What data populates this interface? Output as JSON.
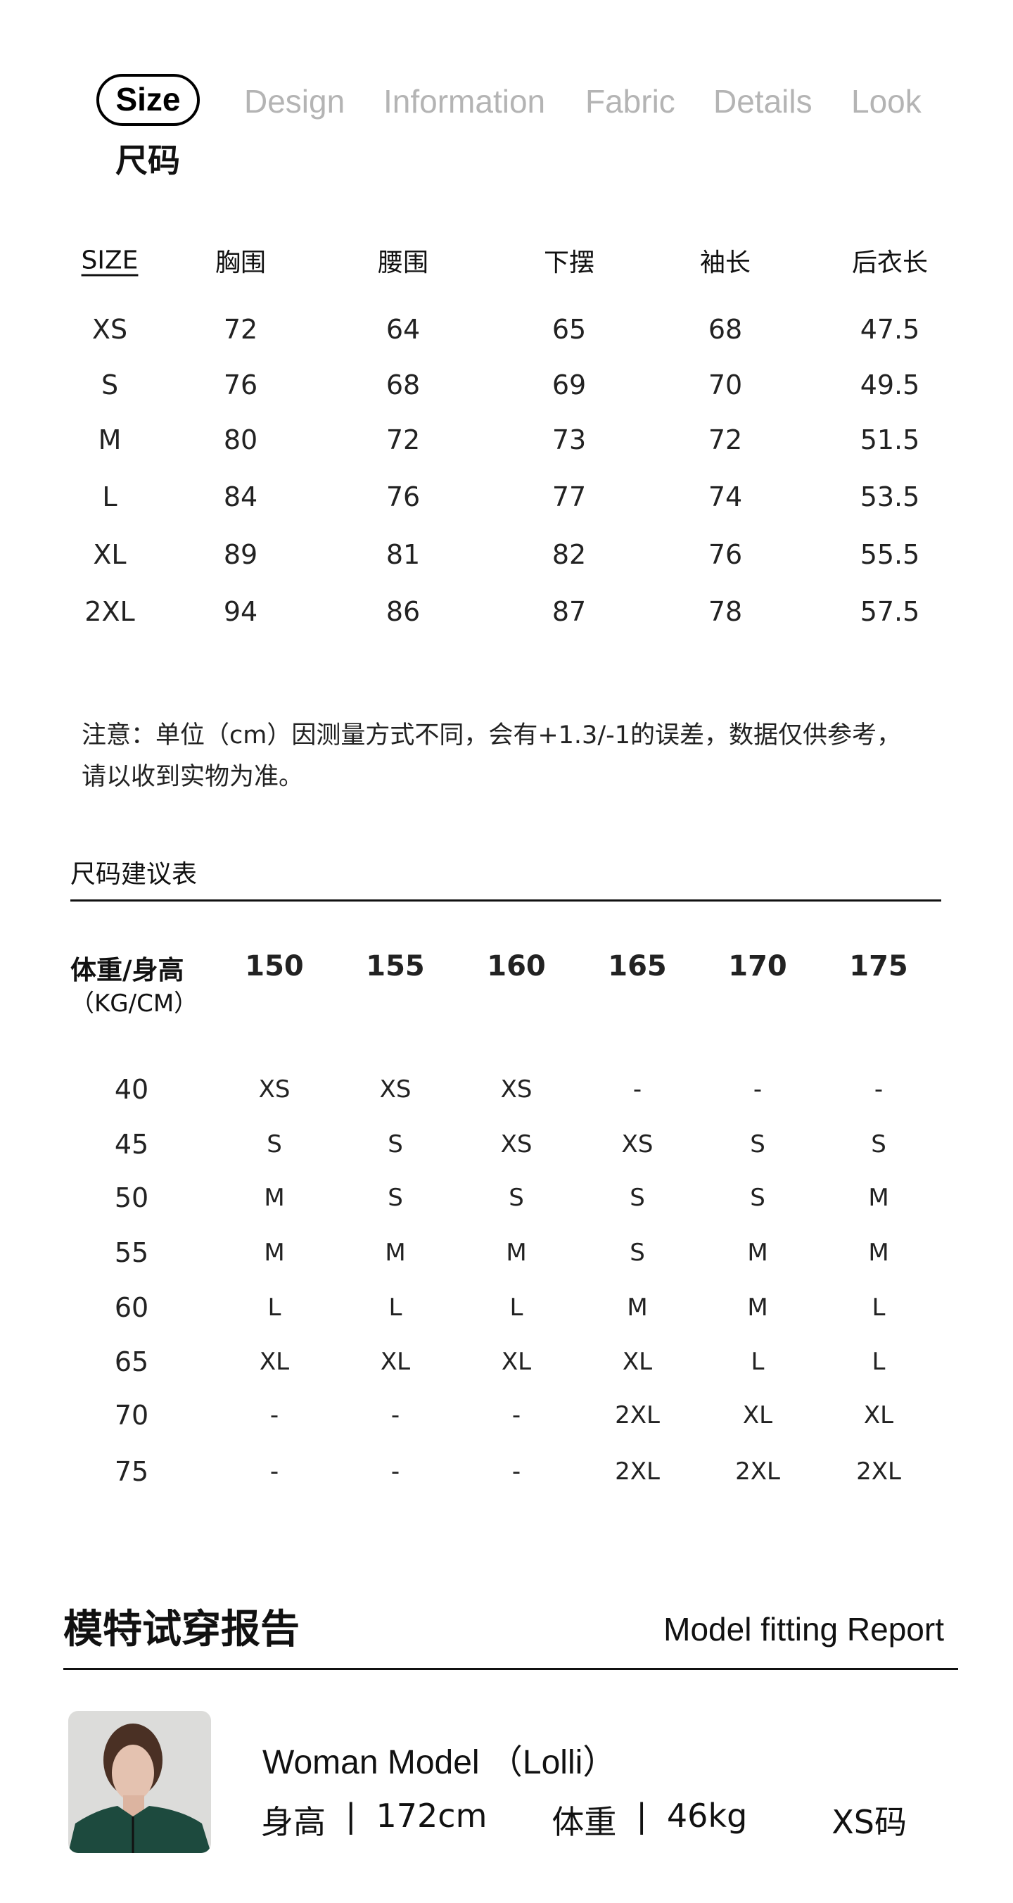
{
  "tabs": [
    {
      "label": "Size",
      "active": true
    },
    {
      "label": "Design"
    },
    {
      "label": "Information"
    },
    {
      "label": "Fabric"
    },
    {
      "label": "Details"
    },
    {
      "label": "Look"
    }
  ],
  "section_title": "尺码",
  "size_table": {
    "headers": [
      "SIZE",
      "胸围",
      "腰围",
      "下摆",
      "袖长",
      "后衣长"
    ],
    "rows": [
      [
        "XS",
        "72",
        "64",
        "65",
        "68",
        "47.5"
      ],
      [
        "S",
        "76",
        "68",
        "69",
        "70",
        "49.5"
      ],
      [
        "M",
        "80",
        "72",
        "73",
        "72",
        "51.5"
      ],
      [
        "L",
        "84",
        "76",
        "77",
        "74",
        "53.5"
      ],
      [
        "XL",
        "89",
        "81",
        "82",
        "76",
        "55.5"
      ],
      [
        "2XL",
        "94",
        "86",
        "87",
        "78",
        "57.5"
      ]
    ]
  },
  "note": {
    "line1": "注意：单位（cm）因测量方式不同，会有+1.3/-1的误差，数据仅供参考，",
    "line2": "请以收到实物为准。"
  },
  "recommend": {
    "title": "尺码建议表",
    "corner_label": "体重/身高",
    "corner_unit": "（KG/CM）",
    "heights": [
      "150",
      "155",
      "160",
      "165",
      "170",
      "175"
    ],
    "rows": [
      {
        "weight": "40",
        "sizes": [
          "XS",
          "XS",
          "XS",
          "-",
          "-",
          "-"
        ]
      },
      {
        "weight": "45",
        "sizes": [
          "S",
          "S",
          "XS",
          "XS",
          "S",
          "S"
        ]
      },
      {
        "weight": "50",
        "sizes": [
          "M",
          "S",
          "S",
          "S",
          "S",
          "M"
        ]
      },
      {
        "weight": "55",
        "sizes": [
          "M",
          "M",
          "M",
          "S",
          "M",
          "M"
        ]
      },
      {
        "weight": "60",
        "sizes": [
          "L",
          "L",
          "L",
          "M",
          "M",
          "L"
        ]
      },
      {
        "weight": "65",
        "sizes": [
          "XL",
          "XL",
          "XL",
          "XL",
          "L",
          "L"
        ]
      },
      {
        "weight": "70",
        "sizes": [
          "-",
          "-",
          "-",
          "2XL",
          "XL",
          "XL"
        ]
      },
      {
        "weight": "75",
        "sizes": [
          "-",
          "-",
          "-",
          "2XL",
          "2XL",
          "2XL"
        ]
      }
    ]
  },
  "report": {
    "title_cn": "模特试穿报告",
    "title_en": "Model fitting Report",
    "model_name": "Woman Model （Lolli）",
    "height_label": "身高",
    "height_value": "172cm",
    "weight_label": "体重",
    "weight_value": "46kg",
    "size": "XS码",
    "separator": "|"
  }
}
